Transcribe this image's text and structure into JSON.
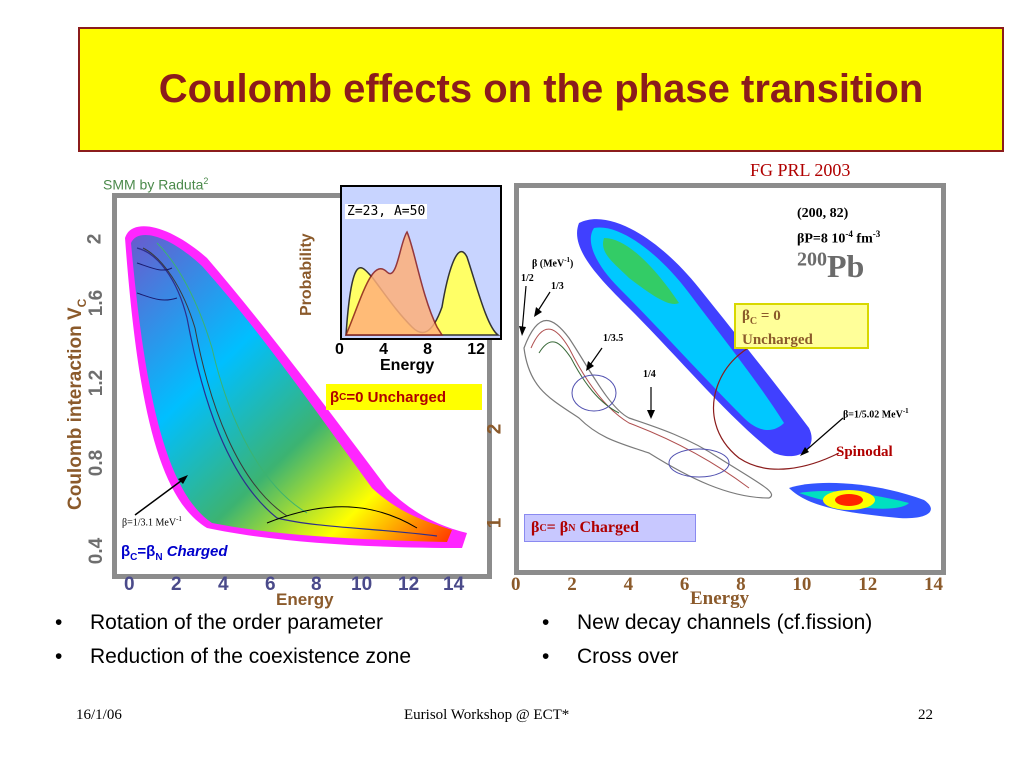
{
  "title": "Coulomb effects on the phase transition",
  "left_panel": {
    "source_label": "SMM by Raduta",
    "source_sup": "2",
    "ylabel": "Coulomb interaction V",
    "ylabel_sub": "C",
    "y_ticks": [
      "0.4",
      "0.8",
      "1.2",
      "1.6",
      "2"
    ],
    "x_ticks": [
      "0",
      "2",
      "4",
      "6",
      "8",
      "10",
      "12",
      "14"
    ],
    "xlabel": "Energy",
    "arrow_label": "β=1/3.1 MeV",
    "arrow_label_sup": "-1",
    "charged_label": "β",
    "charged_sub_c": "C",
    "charged_eq": "=β",
    "charged_sub_n": "N",
    "charged_word": "Charged"
  },
  "inset": {
    "label": "Z=23, A=50",
    "ylabel": "Probability",
    "x_ticks": [
      "0",
      "4",
      "8",
      "12"
    ],
    "xlabel": "Energy",
    "uncharged_beta": "β",
    "uncharged_sub": "C",
    "uncharged_eq": "=0",
    "uncharged_word": "Uncharged"
  },
  "right_panel": {
    "reference": "FG PRL 2003",
    "params_line1": "(200, 82)",
    "params_line2": "βP=8 10",
    "params_sup": "-4",
    "params_unit": " fm",
    "params_unit_sup": "-3",
    "nucleus_mass": "200",
    "nucleus_symbol": "Pb",
    "beta_axis_label": "β (MeV",
    "beta_axis_sup": "-1",
    "beta_axis_close": ")",
    "beta_half": "1/2",
    "beta_third": "1/3",
    "beta_3_5": "1/3.5",
    "beta_quarter": "1/4",
    "beta_5_02": "β=1/5.02 MeV",
    "beta_5_02_sup": "-1",
    "uncharged_beta": "β",
    "uncharged_sub": "C",
    "uncharged_eq": " = 0",
    "uncharged_word": "Uncharged",
    "spinodal": "Spinodal",
    "charged_beta": "β",
    "charged_sub_c": "C",
    "charged_eq": " = β",
    "charged_sub_n": "N",
    "charged_word": "Charged",
    "y_ticks": [
      "1",
      "2"
    ],
    "x_ticks": [
      "0",
      "2",
      "4",
      "6",
      "8",
      "10",
      "12",
      "14"
    ],
    "xlabel": "Energy"
  },
  "bullets_left": [
    "Rotation of the order parameter",
    "Reduction of the coexistence zone"
  ],
  "bullets_right": [
    "New decay channels (cf.fission)",
    "Cross over"
  ],
  "bullet_char": "•",
  "footer": {
    "date": "16/1/06",
    "event": "Eurisol Workshop @ ECT*",
    "page": "22"
  },
  "colors": {
    "title_bg": "#ffff00",
    "title_text": "#8b1c1c",
    "frame": "#8c8c8c",
    "uncharged_box": "#ffff99",
    "charged_box": "#c8c8ff"
  }
}
